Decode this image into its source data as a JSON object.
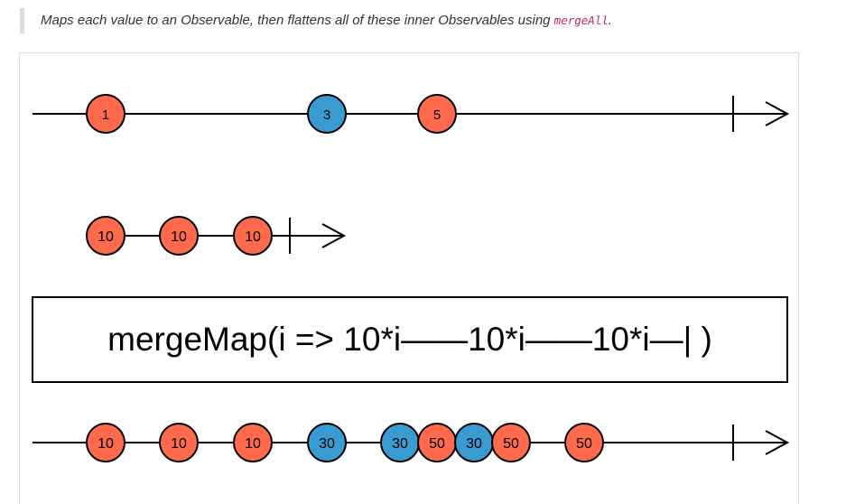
{
  "description": {
    "text_before": "Maps each value to an Observable, then flattens all of these inner Observables using ",
    "code": "mergeAll",
    "text_after": "."
  },
  "colors": {
    "orange": "#ff6a4d",
    "blue": "#3a9bd0",
    "line": "#000000"
  },
  "operator_label": "mergeMap(i => 10*i——10*i——10*i—| )",
  "diagram": {
    "source": {
      "completes": true,
      "marbles": [
        {
          "label": "1",
          "color": "orange"
        },
        {
          "label": "3",
          "color": "blue"
        },
        {
          "label": "5",
          "color": "orange"
        }
      ]
    },
    "inner": {
      "completes": true,
      "marbles": [
        {
          "label": "10",
          "color": "orange"
        },
        {
          "label": "10",
          "color": "orange"
        },
        {
          "label": "10",
          "color": "orange"
        }
      ]
    },
    "output": {
      "completes": true,
      "marbles": [
        {
          "label": "10",
          "color": "orange"
        },
        {
          "label": "10",
          "color": "orange"
        },
        {
          "label": "10",
          "color": "orange"
        },
        {
          "label": "30",
          "color": "blue"
        },
        {
          "label": "30",
          "color": "blue"
        },
        {
          "label": "50",
          "color": "orange"
        },
        {
          "label": "30",
          "color": "blue"
        },
        {
          "label": "50",
          "color": "orange"
        },
        {
          "label": "50",
          "color": "orange"
        }
      ]
    }
  }
}
